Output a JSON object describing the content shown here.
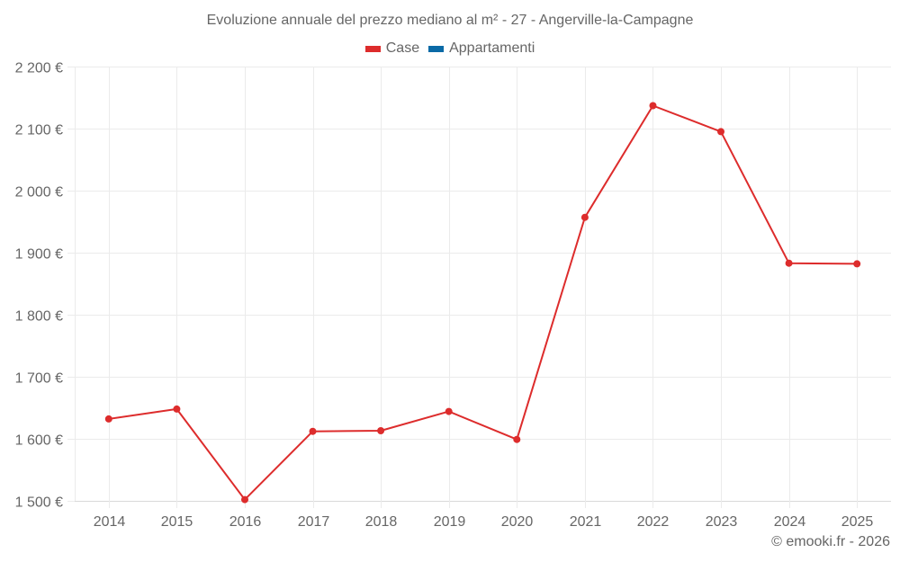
{
  "chart_data": {
    "type": "line",
    "title": "Evoluzione annuale del prezzo mediano al m² - 27 - Angerville-la-Campagne",
    "xlabel": "",
    "ylabel": "",
    "categories": [
      "2014",
      "2015",
      "2016",
      "2017",
      "2018",
      "2019",
      "2020",
      "2021",
      "2022",
      "2023",
      "2024",
      "2025"
    ],
    "series": [
      {
        "name": "Case",
        "color": "#dd2c2c",
        "values": [
          1632,
          1648,
          1502,
          1612,
          1613,
          1644,
          1599,
          1957,
          2137,
          2095,
          1883,
          1882
        ]
      },
      {
        "name": "Appartamenti",
        "color": "#0a6aa6",
        "values": []
      }
    ],
    "ylim": [
      1500,
      2200
    ],
    "yticks": [
      1500,
      1600,
      1700,
      1800,
      1900,
      2000,
      2100,
      2200
    ],
    "ytick_labels": [
      "1 500 €",
      "1 600 €",
      "1 700 €",
      "1 800 €",
      "1 900 €",
      "2 000 €",
      "2 100 €",
      "2 200 €"
    ],
    "grid": true,
    "legend_position": "top"
  },
  "header": {
    "title": "Evoluzione annuale del prezzo mediano al m² - 27 - Angerville-la-Campagne"
  },
  "legend": {
    "items": [
      {
        "label": "Case",
        "color": "#dd2c2c"
      },
      {
        "label": "Appartamenti",
        "color": "#0a6aa6"
      }
    ]
  },
  "footer": {
    "credit": "© emooki.fr - 2026"
  },
  "colors": {
    "grid": "#ebebeb",
    "axis": "#d9d9d9",
    "text": "#666666"
  }
}
